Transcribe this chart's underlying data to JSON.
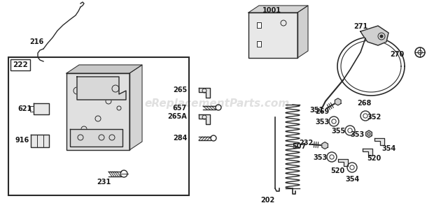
{
  "bg_color": "#ffffff",
  "watermark": "eReplacementParts.com",
  "watermark_color": "#bbbbbb",
  "watermark_alpha": 0.45,
  "line_color": "#2a2a2a",
  "label_color": "#1a1a1a",
  "fill_light": "#e8e8e8",
  "fill_mid": "#d0d0d0",
  "lw_main": 1.0,
  "lw_thin": 0.7,
  "label_fs": 6.5,
  "label_fs_bold": 7.0
}
